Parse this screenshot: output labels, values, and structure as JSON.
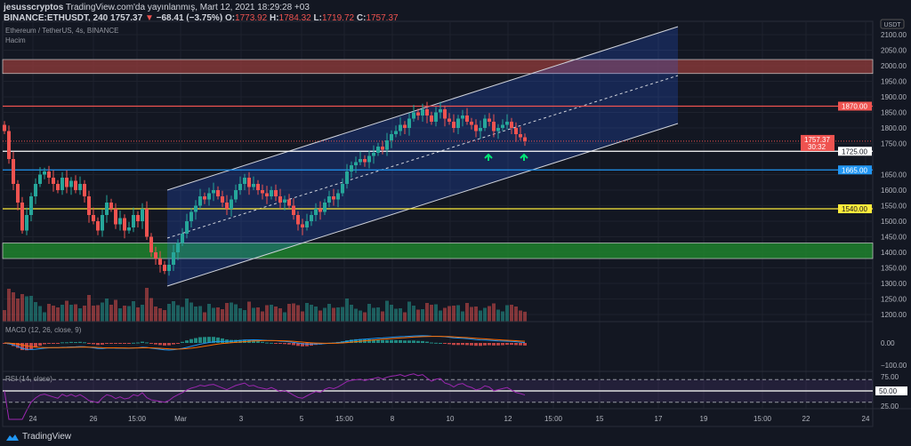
{
  "header": {
    "author": "jesusscryptos",
    "published": "TradingView.com'da yayınlanmış, Mart 12, 2021 18:29:28 +03",
    "symbol": "BINANCE:ETHUSDT, 240",
    "last": "1757.37",
    "change": "−68.41 (−3.75%)",
    "o_label": "O:",
    "o": "1773.92",
    "h_label": "H:",
    "h": "1784.32",
    "l_label": "L:",
    "l": "1719.72",
    "c_label": "C:",
    "c": "1757.37"
  },
  "panes": {
    "main_title": "Ethereum / TetherUS, 4s, BINANCE",
    "volume_label": "Hacim",
    "macd_label": "MACD (12, 26, close, 9)",
    "rsi_label": "RSI (14, close)"
  },
  "footer": {
    "brand": "TradingView"
  },
  "colors": {
    "up": "#26a69a",
    "down": "#ef5350",
    "bg": "#131722"
  },
  "chart_data": {
    "type": "candlestick",
    "currency": "USDT",
    "price_ticks": [
      "2100.00",
      "2050.00",
      "2000.00",
      "1950.00",
      "1900.00",
      "1850.00",
      "1800.00",
      "1750.00",
      "1650.00",
      "1600.00",
      "1550.00",
      "1500.00",
      "1450.00",
      "1400.00",
      "1350.00",
      "1300.00",
      "1250.00",
      "1200.00"
    ],
    "price_ticks_values": [
      2100,
      2050,
      2000,
      1950,
      1900,
      1850,
      1800,
      1750,
      1650,
      1600,
      1550,
      1500,
      1450,
      1400,
      1350,
      1300,
      1250,
      1200
    ],
    "macd_ticks": [
      "0.00",
      "−100.00"
    ],
    "rsi_ticks": [
      "75.00",
      "25.00"
    ],
    "time_ticks": [
      "24",
      "26",
      "15:00",
      "Mar",
      "3",
      "5",
      "15:00",
      "8",
      "10",
      "12",
      "15:00",
      "15",
      "17",
      "19",
      "15:00",
      "22",
      "24"
    ],
    "levels": [
      {
        "label": "1870.00",
        "value": 1870,
        "color": "#ef5350"
      },
      {
        "label": "1725.00",
        "value": 1725,
        "color": "#ffffff"
      },
      {
        "label": "1665.00",
        "value": 1665,
        "color": "#2196f3"
      },
      {
        "label": "1540.00",
        "value": 1540,
        "color": "#ffeb3b"
      }
    ],
    "last_price": {
      "label": "1757.37",
      "countdown": "30:32"
    },
    "rsi_level": {
      "label": "50.00",
      "value": 50
    },
    "zones": [
      {
        "from": 1975,
        "to": 2020,
        "color": "#8b3a3a"
      },
      {
        "from": 1380,
        "to": 1430,
        "color": "#1f8a2e"
      }
    ],
    "closes": [
      1790,
      1700,
      1620,
      1560,
      1470,
      1520,
      1580,
      1620,
      1650,
      1660,
      1640,
      1620,
      1600,
      1640,
      1610,
      1630,
      1600,
      1620,
      1580,
      1520,
      1500,
      1470,
      1520,
      1560,
      1540,
      1490,
      1510,
      1470,
      1480,
      1520,
      1500,
      1540,
      1450,
      1400,
      1380,
      1360,
      1340,
      1360,
      1400,
      1430,
      1460,
      1500,
      1530,
      1550,
      1580,
      1570,
      1590,
      1600,
      1580,
      1560,
      1540,
      1570,
      1600,
      1620,
      1640,
      1610,
      1620,
      1600,
      1590,
      1580,
      1600,
      1580,
      1560,
      1570,
      1550,
      1520,
      1490,
      1480,
      1500,
      1520,
      1540,
      1530,
      1560,
      1580,
      1570,
      1590,
      1620,
      1660,
      1680,
      1690,
      1700,
      1690,
      1710,
      1720,
      1740,
      1730,
      1760,
      1780,
      1790,
      1810,
      1800,
      1830,
      1850,
      1840,
      1860,
      1840,
      1820,
      1850,
      1860,
      1830,
      1820,
      1800,
      1830,
      1840,
      1820,
      1810,
      1790,
      1800,
      1830,
      1820,
      1790,
      1800,
      1810,
      1820,
      1800,
      1780,
      1770,
      1757.37
    ]
  }
}
